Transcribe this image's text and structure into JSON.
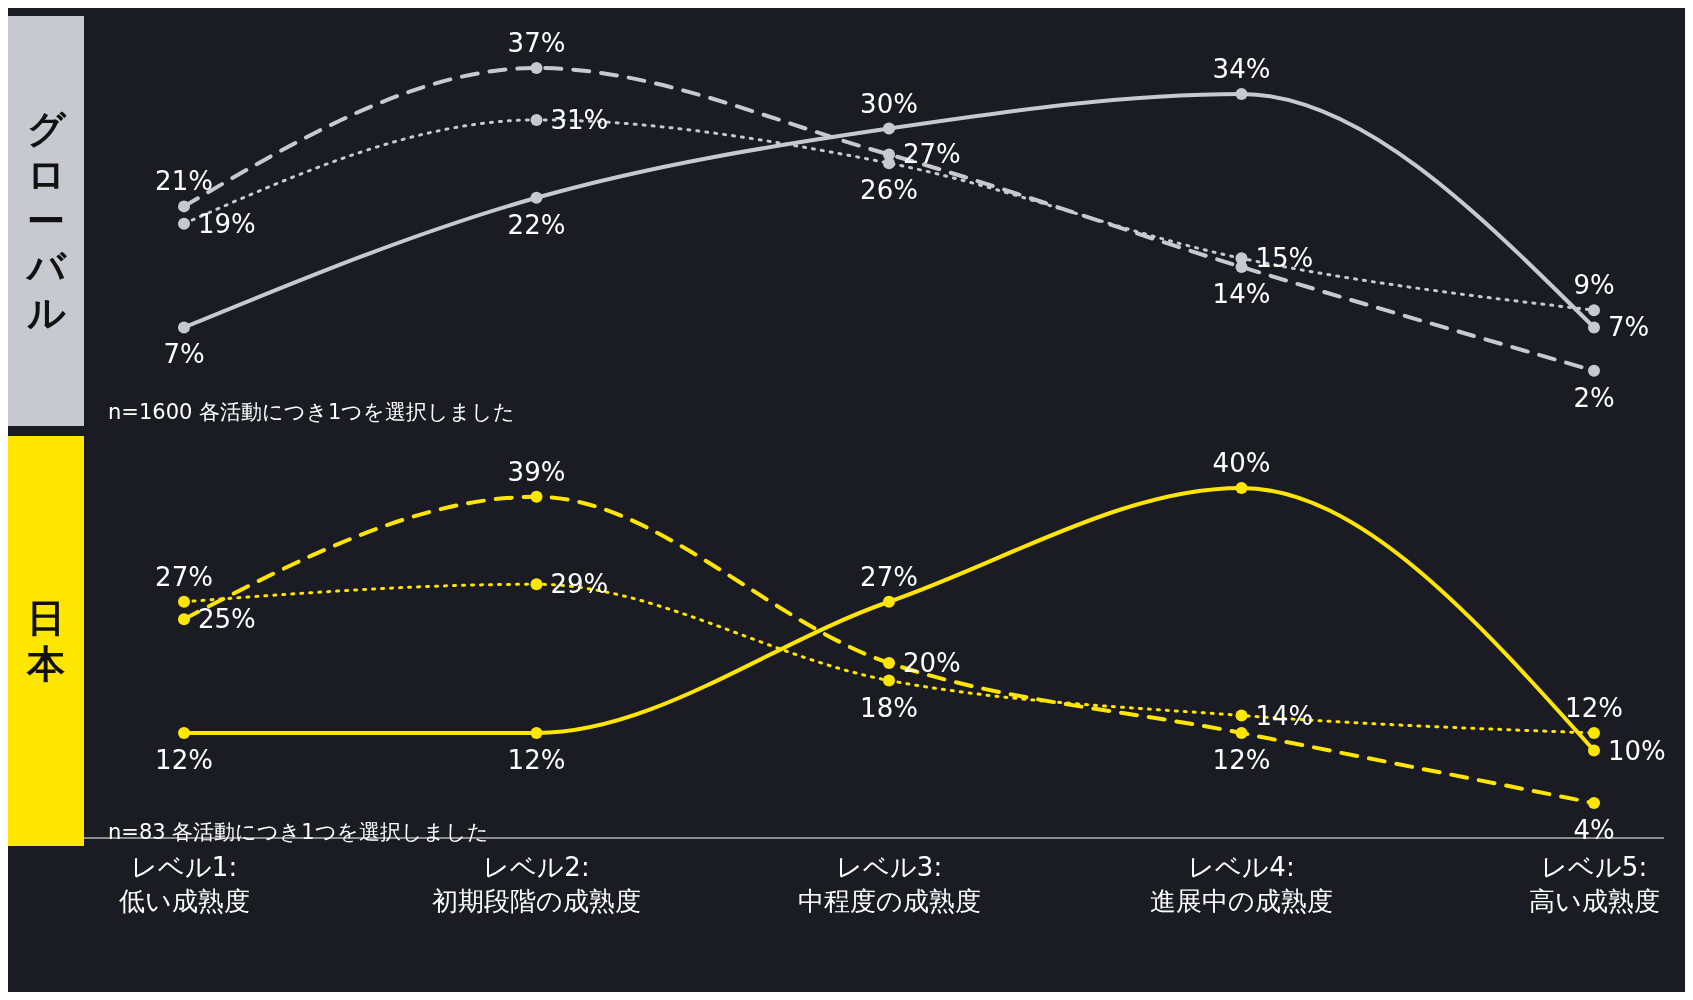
{
  "chart_data": [
    {
      "type": "line",
      "title": "グローバル",
      "categories": [
        null,
        null,
        null,
        null,
        null
      ],
      "series": [
        {
          "color": "#c8c8d0",
          "line_style": "solid",
          "values": [
            7,
            22,
            30,
            34,
            7
          ],
          "value_labels": [
            "7%",
            "22%",
            "30%",
            "34%",
            "7%"
          ]
        },
        {
          "color": "#c8c8d0",
          "line_style": "dashed",
          "values": [
            21,
            37,
            27,
            14,
            2
          ],
          "value_labels": [
            "21%",
            "37%",
            "27%",
            "14%",
            "2%"
          ]
        },
        {
          "color": "#c8c8d0",
          "line_style": "dotted",
          "values": [
            19,
            31,
            26,
            15,
            9
          ],
          "value_labels": [
            "19%",
            "31%",
            "26%",
            "15%",
            "9%"
          ]
        }
      ],
      "marker": "circle",
      "tick_labels": false,
      "annotations": [
        "n=1600  各活動につき1つを選択しました"
      ]
    },
    {
      "type": "line",
      "title": "日本",
      "categories": [
        "レベル1:\n低い成熟度",
        "レベル2:\n初期段階の成熟度",
        "レベル3:\n中程度の成熟度",
        "レベル4:\n進展中の成熟度",
        "レベル5:\n高い成熟度"
      ],
      "series": [
        {
          "color": "#ffe600",
          "line_style": "solid",
          "values": [
            12,
            12,
            27,
            40,
            10
          ],
          "value_labels": [
            "12%",
            "12%",
            "27%",
            "40%",
            "10%"
          ]
        },
        {
          "color": "#ffe600",
          "line_style": "dashed",
          "values": [
            25,
            39,
            20,
            12,
            4
          ],
          "value_labels": [
            "25%",
            "39%",
            "20%",
            "12%",
            "4%"
          ]
        },
        {
          "color": "#ffe600",
          "line_style": "dotted",
          "values": [
            27,
            29,
            18,
            14,
            12
          ],
          "value_labels": [
            "27%",
            "29%",
            "18%",
            "14%",
            "12%"
          ]
        }
      ],
      "marker": "circle",
      "tick_labels": "x",
      "annotations": [
        "n=83 各活動につき1つを選択しました"
      ]
    }
  ]
}
